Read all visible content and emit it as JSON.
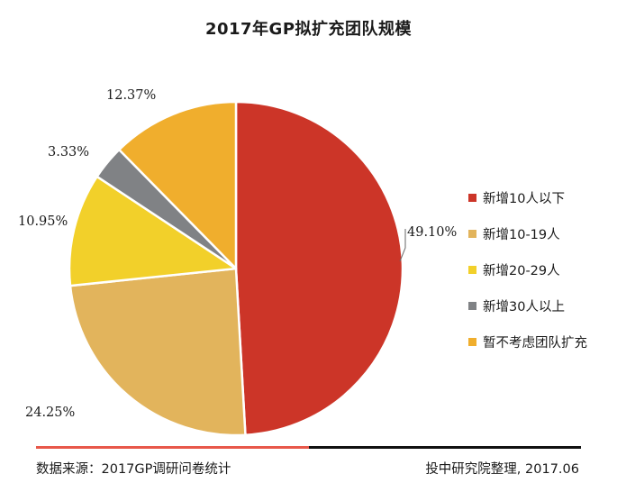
{
  "chart_data": {
    "type": "pie",
    "title": "2017年GP拟扩充团队规模",
    "slices": [
      {
        "label": "新增10人以下",
        "value": 49.1,
        "display": "49.10%",
        "color": "#cc3528"
      },
      {
        "label": "新增10-19人",
        "value": 24.25,
        "display": "24.25%",
        "color": "#e2b45c"
      },
      {
        "label": "新增20-29人",
        "value": 10.95,
        "display": "10.95%",
        "color": "#f2d02a"
      },
      {
        "label": "新增30人以上",
        "value": 3.33,
        "display": "3.33%",
        "color": "#808285"
      },
      {
        "label": "暂不考虑团队扩充",
        "value": 12.37,
        "display": "12.37%",
        "color": "#f0ae2d"
      }
    ],
    "legend_position": "right"
  },
  "footer": {
    "source": "数据来源：2017GP调研问卷统计",
    "credit": "投中研究院整理, 2017.06",
    "bar_colors": [
      "#e8584a",
      "#111111"
    ]
  }
}
